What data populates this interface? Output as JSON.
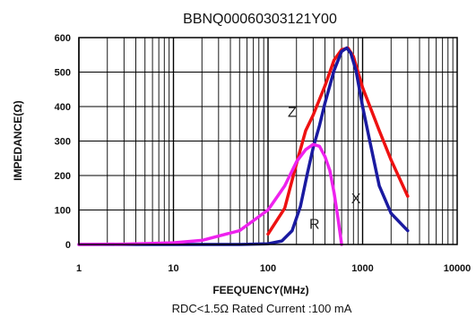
{
  "chart_data": {
    "type": "line",
    "title": "BBNQ00060303121Y00",
    "xlabel": "FEEQUENCY(MHz)",
    "ylabel": "IMPEDANCE(Ω)",
    "caption": "RDC<1.5Ω Rated Current :100 mA",
    "x_scale": "log",
    "xlim": [
      1,
      10000
    ],
    "ylim": [
      0,
      600
    ],
    "x_ticks": [
      {
        "value": 1,
        "label": "1"
      },
      {
        "value": 10,
        "label": "10"
      },
      {
        "value": 100,
        "label": "100"
      },
      {
        "value": 1000,
        "label": "1000"
      },
      {
        "value": 10000,
        "label": "10000"
      }
    ],
    "y_ticks": [
      {
        "value": 0,
        "label": "0"
      },
      {
        "value": 100,
        "label": "100"
      },
      {
        "value": 200,
        "label": "200"
      },
      {
        "value": 300,
        "label": "300"
      },
      {
        "value": 400,
        "label": "400"
      },
      {
        "value": 500,
        "label": "500"
      },
      {
        "value": 600,
        "label": "600"
      }
    ],
    "grid": true,
    "series": [
      {
        "name": "Z",
        "color": "#ee1111",
        "points": [
          [
            100,
            30
          ],
          [
            150,
            105
          ],
          [
            200,
            235
          ],
          [
            250,
            330
          ],
          [
            300,
            375
          ],
          [
            400,
            460
          ],
          [
            500,
            535
          ],
          [
            600,
            565
          ],
          [
            700,
            570
          ],
          [
            800,
            545
          ],
          [
            1000,
            455
          ],
          [
            1500,
            330
          ],
          [
            2000,
            245
          ],
          [
            3000,
            140
          ]
        ]
      },
      {
        "name": "X",
        "color": "#1a1aa0",
        "points": [
          [
            1,
            0
          ],
          [
            50,
            0
          ],
          [
            100,
            2
          ],
          [
            140,
            10
          ],
          [
            180,
            40
          ],
          [
            220,
            110
          ],
          [
            260,
            205
          ],
          [
            300,
            280
          ],
          [
            350,
            345
          ],
          [
            400,
            410
          ],
          [
            500,
            505
          ],
          [
            600,
            560
          ],
          [
            680,
            570
          ],
          [
            750,
            555
          ],
          [
            850,
            505
          ],
          [
            1000,
            400
          ],
          [
            1200,
            295
          ],
          [
            1500,
            170
          ],
          [
            2000,
            90
          ],
          [
            3000,
            40
          ]
        ]
      },
      {
        "name": "R",
        "color": "#ee22ee",
        "points": [
          [
            1,
            0
          ],
          [
            3,
            1
          ],
          [
            10,
            5
          ],
          [
            20,
            12
          ],
          [
            50,
            40
          ],
          [
            100,
            100
          ],
          [
            150,
            170
          ],
          [
            200,
            240
          ],
          [
            250,
            275
          ],
          [
            300,
            290
          ],
          [
            350,
            285
          ],
          [
            400,
            255
          ],
          [
            450,
            215
          ],
          [
            500,
            150
          ],
          [
            550,
            75
          ],
          [
            600,
            0
          ]
        ]
      }
    ],
    "annotations": [
      {
        "text": "Z",
        "x": 180,
        "y": 370
      },
      {
        "text": "X",
        "x": 850,
        "y": 120
      },
      {
        "text": "R",
        "x": 310,
        "y": 45
      }
    ]
  }
}
